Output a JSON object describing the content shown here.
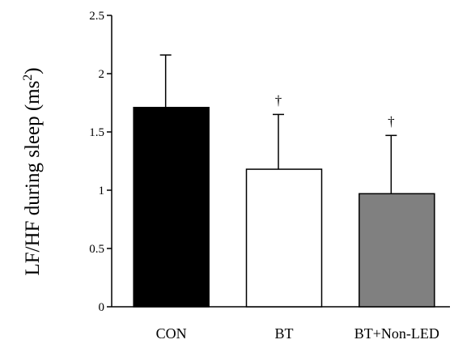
{
  "chart_data": {
    "type": "bar",
    "title": "",
    "xlabel": "",
    "ylabel": "LF/HF during sleep (ms",
    "ylabel_superscript": "2",
    "ylabel_suffix": ")",
    "categories": [
      "CON",
      "BT",
      "BT+Non-LED"
    ],
    "values": [
      1.71,
      1.18,
      0.97
    ],
    "error_upper": [
      0.45,
      0.47,
      0.5
    ],
    "annotations": [
      "",
      "†",
      "†"
    ],
    "colors": [
      "#000000",
      "#ffffff",
      "#808080"
    ],
    "ylim": [
      0,
      2.5
    ],
    "yticks": [
      0,
      0.5,
      1,
      1.5,
      2,
      2.5
    ],
    "ytick_labels": [
      "0",
      "0.5",
      "1",
      "1.5",
      "2",
      "2.5"
    ],
    "grid": false,
    "legend": "none"
  }
}
